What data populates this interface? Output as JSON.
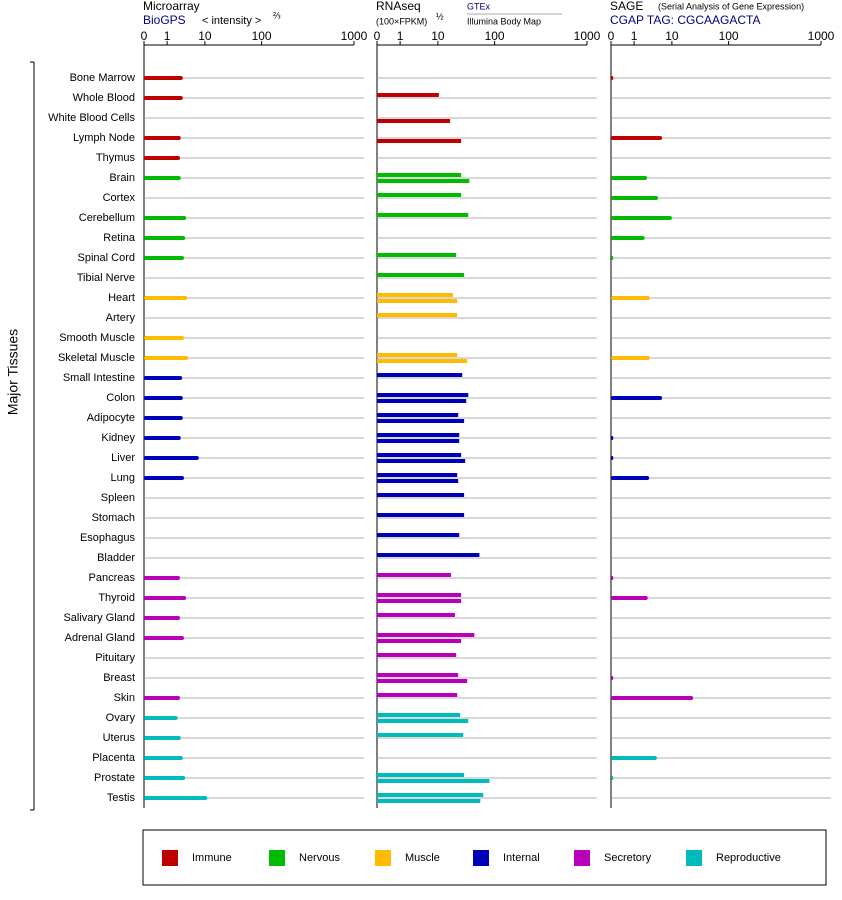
{
  "chart_data": {
    "type": "bar",
    "orientation": "horizontal",
    "ylabel": "Major Tissues",
    "groups": [
      {
        "name": "Immune",
        "color": "#c00000",
        "categories": [
          "Bone Marrow",
          "Whole Blood",
          "White Blood Cells",
          "Lymph Node",
          "Thymus"
        ]
      },
      {
        "name": "Nervous",
        "color": "#00bb00",
        "categories": [
          "Brain",
          "Cortex",
          "Cerebellum",
          "Retina",
          "Spinal Cord",
          "Tibial Nerve"
        ]
      },
      {
        "name": "Muscle",
        "color": "#ffbb00",
        "categories": [
          "Heart",
          "Artery",
          "Smooth Muscle",
          "Skeletal Muscle"
        ]
      },
      {
        "name": "Internal",
        "color": "#0000bb",
        "categories": [
          "Small Intestine",
          "Colon",
          "Adipocyte",
          "Kidney",
          "Liver",
          "Lung",
          "Spleen",
          "Stomach",
          "Esophagus",
          "Bladder"
        ]
      },
      {
        "name": "Secretory",
        "color": "#bb00bb",
        "categories": [
          "Pancreas",
          "Thyroid",
          "Salivary Gland",
          "Adrenal Gland",
          "Pituitary",
          "Breast",
          "Skin"
        ]
      },
      {
        "name": "Reproductive",
        "color": "#00bbbb",
        "categories": [
          "Ovary",
          "Uterus",
          "Placenta",
          "Prostate",
          "Testis"
        ]
      }
    ],
    "panels": [
      {
        "title": "Microarray",
        "unit": "< intensity >",
        "unit_exponent": "⅔",
        "xlim": [
          0,
          1000
        ],
        "xticks": [
          0,
          1,
          10,
          100,
          1000
        ],
        "series": [
          {
            "name": "BioGPS",
            "values": [
              2.6,
              2.6,
              null,
              2.3,
              2.2,
              2.3,
              null,
              3.2,
              3.0,
              2.8,
              null,
              3.4,
              null,
              2.8,
              3.6,
              2.5,
              2.6,
              2.6,
              2.3,
              6.9,
              2.8,
              null,
              null,
              null,
              null,
              2.2,
              3.2,
              2.2,
              2.8,
              null,
              null,
              2.2,
              1.9,
              2.3,
              2.6,
              3.0,
              11
            ]
          }
        ]
      },
      {
        "title": "RNAseq",
        "unit": "(100×FPKM)",
        "unit_exponent": "½",
        "xlim": [
          0,
          1000
        ],
        "xticks": [
          0,
          1,
          10,
          100,
          1000
        ],
        "series": [
          {
            "name": "GTEx",
            "values": [
              null,
              10.4,
              null,
              null,
              null,
              25.7,
              25.7,
              34.3,
              null,
              21,
              29,
              18.5,
              21.9,
              null,
              21.9,
              26.9,
              34.3,
              22.8,
              23.8,
              25.7,
              21.9,
              29,
              29,
              23.8,
              54,
              17,
              25.7,
              20,
              44,
              21,
              22.8,
              21.9,
              24.7,
              28,
              null,
              29,
              63
            ]
          },
          {
            "name": "Illumina Body Map",
            "values": [
              null,
              null,
              16.4,
              25.7,
              null,
              35.8,
              null,
              null,
              null,
              null,
              null,
              21.9,
              null,
              null,
              32.9,
              null,
              31.6,
              29,
              23.8,
              30.3,
              22.8,
              null,
              null,
              null,
              null,
              null,
              25.7,
              null,
              25.7,
              null,
              32.9,
              null,
              34.3,
              null,
              null,
              81,
              56
            ]
          }
        ]
      },
      {
        "title": "SAGE",
        "note": "(Serial Analysis of Gene Expression)",
        "xlim": [
          0,
          1000
        ],
        "xticks": [
          0,
          1,
          10,
          100,
          1000
        ],
        "series": [
          {
            "name": "CGAP TAG: CGCAAGACTA",
            "values": [
              0.1,
              null,
              null,
              5.5,
              null,
              2.2,
              4.3,
              10,
              1.9,
              0.1,
              null,
              2.6,
              null,
              null,
              2.6,
              null,
              5.5,
              null,
              0.1,
              0.1,
              2.5,
              null,
              null,
              null,
              null,
              0.1,
              2.3,
              null,
              null,
              null,
              0.1,
              23.7,
              null,
              null,
              4.0,
              0.1,
              null
            ]
          }
        ]
      }
    ]
  }
}
